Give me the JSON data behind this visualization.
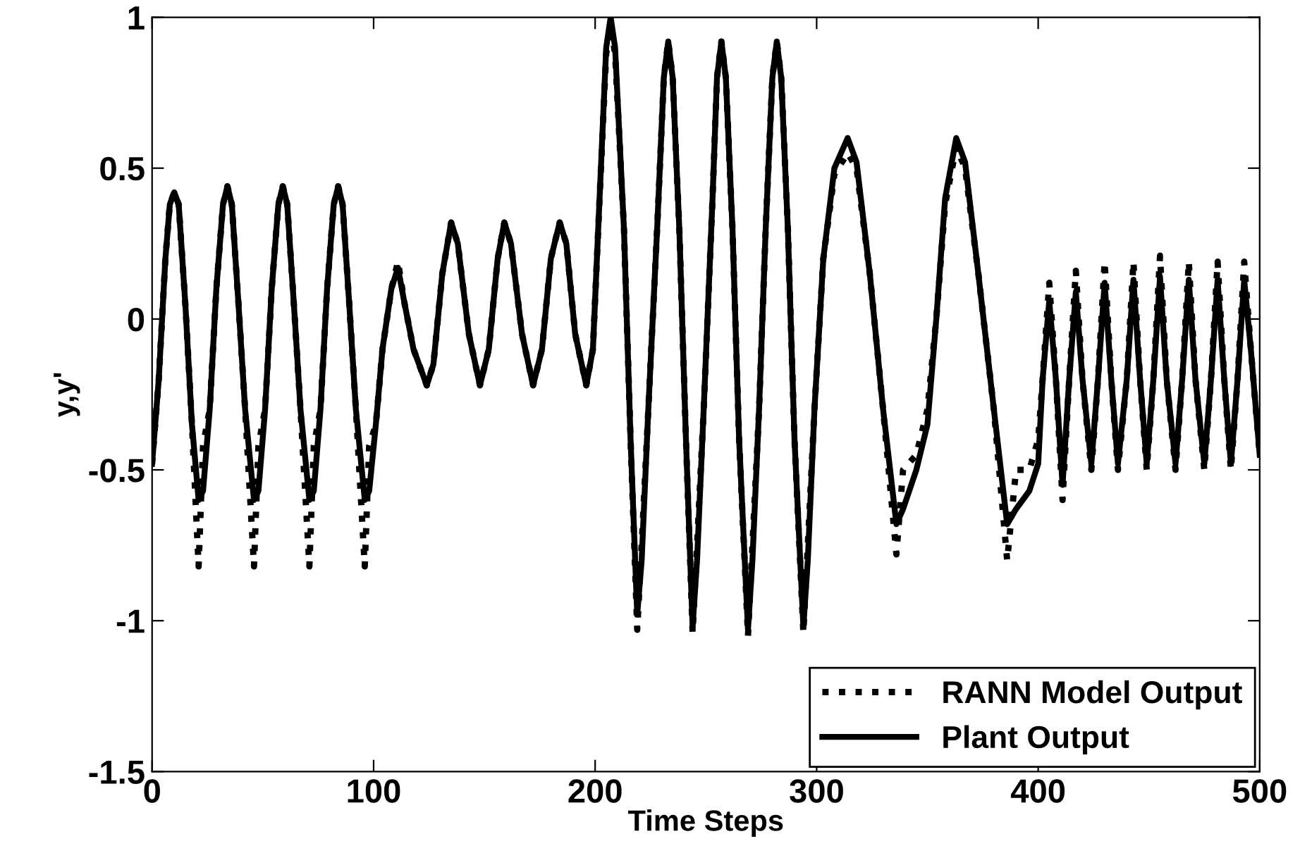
{
  "chart_data": {
    "type": "line",
    "xlabel": "Time Steps",
    "ylabel": "y,y'",
    "xlim": [
      0,
      500
    ],
    "ylim": [
      -1.5,
      1
    ],
    "xticks": [
      0,
      100,
      200,
      300,
      400,
      500
    ],
    "yticks": [
      -1.5,
      -1,
      -0.5,
      0,
      0.5,
      1
    ],
    "grid": false,
    "legend": "bottom right",
    "series": [
      {
        "name": "RANN Model Output",
        "color": "#000000",
        "line_style": "dotted",
        "x": [
          0,
          3,
          6,
          8,
          10,
          12,
          15,
          18,
          21,
          23,
          26,
          29,
          32,
          34,
          36,
          39,
          42,
          46,
          48,
          51,
          54,
          57,
          59,
          61,
          64,
          67,
          71,
          73,
          76,
          79,
          82,
          84,
          86,
          89,
          92,
          96,
          98,
          101,
          104,
          108,
          111,
          114,
          118,
          124,
          127,
          131,
          135,
          138,
          143,
          148,
          152,
          156,
          159,
          162,
          167,
          172,
          176,
          180,
          184,
          187,
          191,
          196,
          199,
          202,
          205,
          207,
          209,
          213,
          216,
          219,
          221,
          224,
          228,
          231,
          233,
          235,
          238,
          241,
          244,
          246,
          249,
          253,
          255,
          257,
          259,
          262,
          265,
          269,
          271,
          274,
          277,
          280,
          282,
          284,
          287,
          290,
          294,
          296,
          299,
          303,
          308,
          314,
          318,
          324,
          330,
          336,
          339,
          345,
          350,
          354,
          358,
          363,
          367,
          373,
          380,
          386,
          390,
          396,
          400,
          402,
          405,
          408,
          411,
          414,
          417,
          420,
          424,
          427,
          430,
          433,
          436,
          440,
          443,
          446,
          449,
          452,
          455,
          458,
          462,
          465,
          468,
          471,
          475,
          478,
          481,
          484,
          487,
          490,
          493,
          496,
          500
        ],
        "values": [
          -0.48,
          -0.2,
          0.2,
          0.38,
          0.42,
          0.38,
          0.05,
          -0.35,
          -0.82,
          -0.42,
          -0.3,
          0.1,
          0.38,
          0.44,
          0.38,
          0.05,
          -0.3,
          -0.82,
          -0.42,
          -0.3,
          0.1,
          0.38,
          0.44,
          0.38,
          0.05,
          -0.3,
          -0.82,
          -0.42,
          -0.3,
          0.1,
          0.38,
          0.44,
          0.38,
          0.05,
          -0.3,
          -0.82,
          -0.42,
          -0.35,
          -0.1,
          0.1,
          0.19,
          0.05,
          -0.1,
          -0.22,
          -0.15,
          0.15,
          0.32,
          0.25,
          -0.05,
          -0.22,
          -0.1,
          0.2,
          0.32,
          0.25,
          -0.05,
          -0.22,
          -0.1,
          0.2,
          0.32,
          0.25,
          -0.05,
          -0.22,
          -0.1,
          0.4,
          0.88,
          0.97,
          0.88,
          0.3,
          -0.4,
          -1.03,
          -0.75,
          -0.3,
          0.3,
          0.8,
          0.92,
          0.8,
          0.3,
          -0.4,
          -1.04,
          -0.75,
          -0.3,
          0.4,
          0.8,
          0.92,
          0.8,
          0.3,
          -0.4,
          -1.05,
          -0.75,
          -0.3,
          0.3,
          0.8,
          0.92,
          0.8,
          0.3,
          -0.4,
          -1.04,
          -0.75,
          -0.3,
          0.2,
          0.48,
          0.55,
          0.5,
          0.15,
          -0.3,
          -0.78,
          -0.5,
          -0.45,
          -0.3,
          0.0,
          0.38,
          0.57,
          0.5,
          0.15,
          -0.3,
          -0.8,
          -0.5,
          -0.5,
          -0.4,
          -0.2,
          0.12,
          -0.2,
          -0.6,
          -0.2,
          0.16,
          -0.2,
          -0.5,
          -0.2,
          0.19,
          -0.2,
          -0.5,
          -0.2,
          0.19,
          -0.2,
          -0.5,
          -0.2,
          0.21,
          -0.2,
          -0.5,
          -0.2,
          0.19,
          -0.2,
          -0.5,
          -0.2,
          0.19,
          -0.2,
          -0.5,
          -0.2,
          0.19,
          -0.1,
          -0.45
        ]
      },
      {
        "name": "Plant Output",
        "color": "#000000",
        "line_style": "solid",
        "x": [
          0,
          3,
          6,
          8,
          10,
          12,
          15,
          18,
          21,
          23,
          26,
          29,
          32,
          34,
          36,
          39,
          42,
          46,
          48,
          51,
          54,
          57,
          59,
          61,
          64,
          67,
          71,
          73,
          76,
          79,
          82,
          84,
          86,
          89,
          92,
          96,
          98,
          101,
          104,
          108,
          111,
          114,
          118,
          124,
          127,
          131,
          135,
          138,
          143,
          148,
          152,
          156,
          159,
          162,
          167,
          172,
          176,
          180,
          184,
          187,
          191,
          196,
          199,
          202,
          205,
          207,
          209,
          213,
          216,
          219,
          221,
          224,
          228,
          231,
          233,
          235,
          238,
          241,
          244,
          246,
          249,
          253,
          255,
          257,
          259,
          262,
          265,
          269,
          271,
          274,
          277,
          280,
          282,
          284,
          287,
          290,
          294,
          296,
          299,
          303,
          308,
          314,
          318,
          324,
          330,
          336,
          339,
          345,
          350,
          354,
          358,
          363,
          367,
          373,
          380,
          386,
          390,
          396,
          400,
          402,
          405,
          408,
          411,
          414,
          417,
          420,
          424,
          427,
          430,
          433,
          436,
          440,
          443,
          446,
          449,
          452,
          455,
          458,
          462,
          465,
          468,
          471,
          475,
          478,
          481,
          484,
          487,
          490,
          493,
          496,
          500
        ],
        "values": [
          -0.48,
          -0.2,
          0.2,
          0.38,
          0.42,
          0.38,
          0.05,
          -0.35,
          -0.6,
          -0.57,
          -0.3,
          0.1,
          0.38,
          0.44,
          0.38,
          0.05,
          -0.3,
          -0.6,
          -0.57,
          -0.3,
          0.1,
          0.38,
          0.44,
          0.38,
          0.05,
          -0.3,
          -0.6,
          -0.57,
          -0.3,
          0.1,
          0.38,
          0.44,
          0.38,
          0.05,
          -0.3,
          -0.6,
          -0.57,
          -0.35,
          -0.1,
          0.1,
          0.17,
          0.05,
          -0.1,
          -0.22,
          -0.15,
          0.15,
          0.32,
          0.25,
          -0.05,
          -0.22,
          -0.1,
          0.2,
          0.32,
          0.25,
          -0.05,
          -0.22,
          -0.1,
          0.2,
          0.32,
          0.25,
          -0.05,
          -0.22,
          -0.1,
          0.4,
          0.9,
          1.0,
          0.9,
          0.3,
          -0.4,
          -0.98,
          -0.8,
          -0.3,
          0.3,
          0.8,
          0.92,
          0.8,
          0.3,
          -0.4,
          -1.02,
          -0.8,
          -0.3,
          0.4,
          0.8,
          0.92,
          0.8,
          0.3,
          -0.4,
          -1.03,
          -0.8,
          -0.3,
          0.3,
          0.8,
          0.92,
          0.8,
          0.3,
          -0.4,
          -1.02,
          -0.8,
          -0.3,
          0.2,
          0.5,
          0.6,
          0.52,
          0.15,
          -0.3,
          -0.68,
          -0.63,
          -0.5,
          -0.35,
          0.0,
          0.4,
          0.6,
          0.52,
          0.15,
          -0.3,
          -0.68,
          -0.63,
          -0.57,
          -0.48,
          -0.2,
          0.06,
          -0.2,
          -0.55,
          -0.2,
          0.09,
          -0.2,
          -0.48,
          -0.2,
          0.12,
          -0.2,
          -0.48,
          -0.2,
          0.13,
          -0.2,
          -0.48,
          -0.2,
          0.14,
          -0.2,
          -0.48,
          -0.2,
          0.13,
          -0.2,
          -0.48,
          -0.2,
          0.13,
          -0.2,
          -0.48,
          -0.2,
          0.13,
          -0.1,
          -0.45
        ]
      }
    ]
  }
}
